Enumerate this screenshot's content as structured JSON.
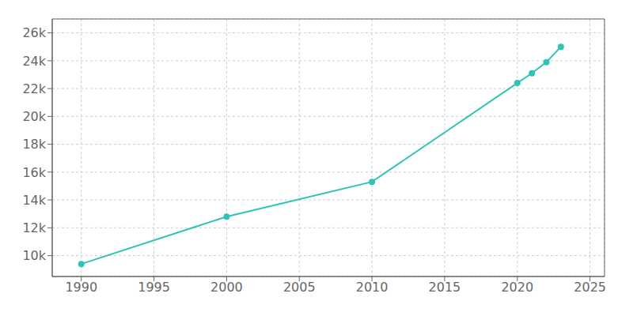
{
  "chart_data": {
    "type": "line",
    "x": [
      1990,
      2000,
      2010,
      2020,
      2021,
      2022,
      2023
    ],
    "values": [
      9400,
      12800,
      15300,
      22400,
      23100,
      23900,
      25000
    ],
    "color": "#2ec4b6",
    "marker": "circle",
    "xlim": [
      1988,
      2026
    ],
    "ylim": [
      8500,
      27000
    ],
    "xticks": [
      1990,
      1995,
      2000,
      2005,
      2010,
      2015,
      2020,
      2025
    ],
    "yticks": [
      {
        "value": 10000,
        "label": "10k"
      },
      {
        "value": 12000,
        "label": "12k"
      },
      {
        "value": 14000,
        "label": "14k"
      },
      {
        "value": 16000,
        "label": "16k"
      },
      {
        "value": 18000,
        "label": "18k"
      },
      {
        "value": 20000,
        "label": "20k"
      },
      {
        "value": 22000,
        "label": "22k"
      },
      {
        "value": 24000,
        "label": "24k"
      },
      {
        "value": 26000,
        "label": "26k"
      }
    ],
    "grid": true
  }
}
